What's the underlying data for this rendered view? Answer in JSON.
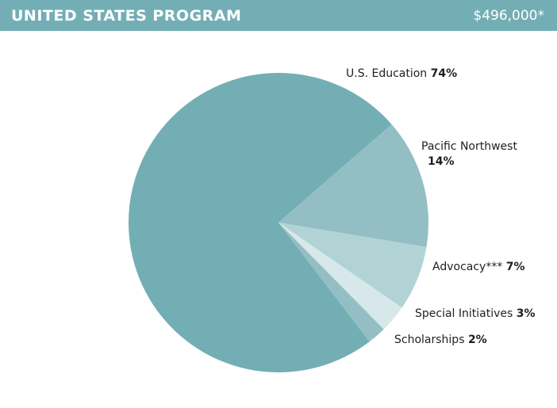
{
  "header": {
    "title": "UNITED STATES PROGRAM",
    "amount": "$496,000*"
  },
  "chart_data": {
    "type": "pie",
    "title": "",
    "slices": [
      {
        "label": "U.S. Education",
        "value": 74,
        "value_label": "74%",
        "color": "#73aeb5"
      },
      {
        "label": "Pacific Northwest",
        "value": 14,
        "value_label": "14%",
        "color": "#93bfc4"
      },
      {
        "label": "Advocacy***",
        "value": 7,
        "value_label": "7%",
        "color": "#b2d3d6"
      },
      {
        "label": "Special Initiatives",
        "value": 3,
        "value_label": "3%",
        "color": "#d6e8e9"
      },
      {
        "label": "Scholarships",
        "value": 2,
        "value_label": "2%",
        "color": "#93bfc4"
      }
    ]
  }
}
